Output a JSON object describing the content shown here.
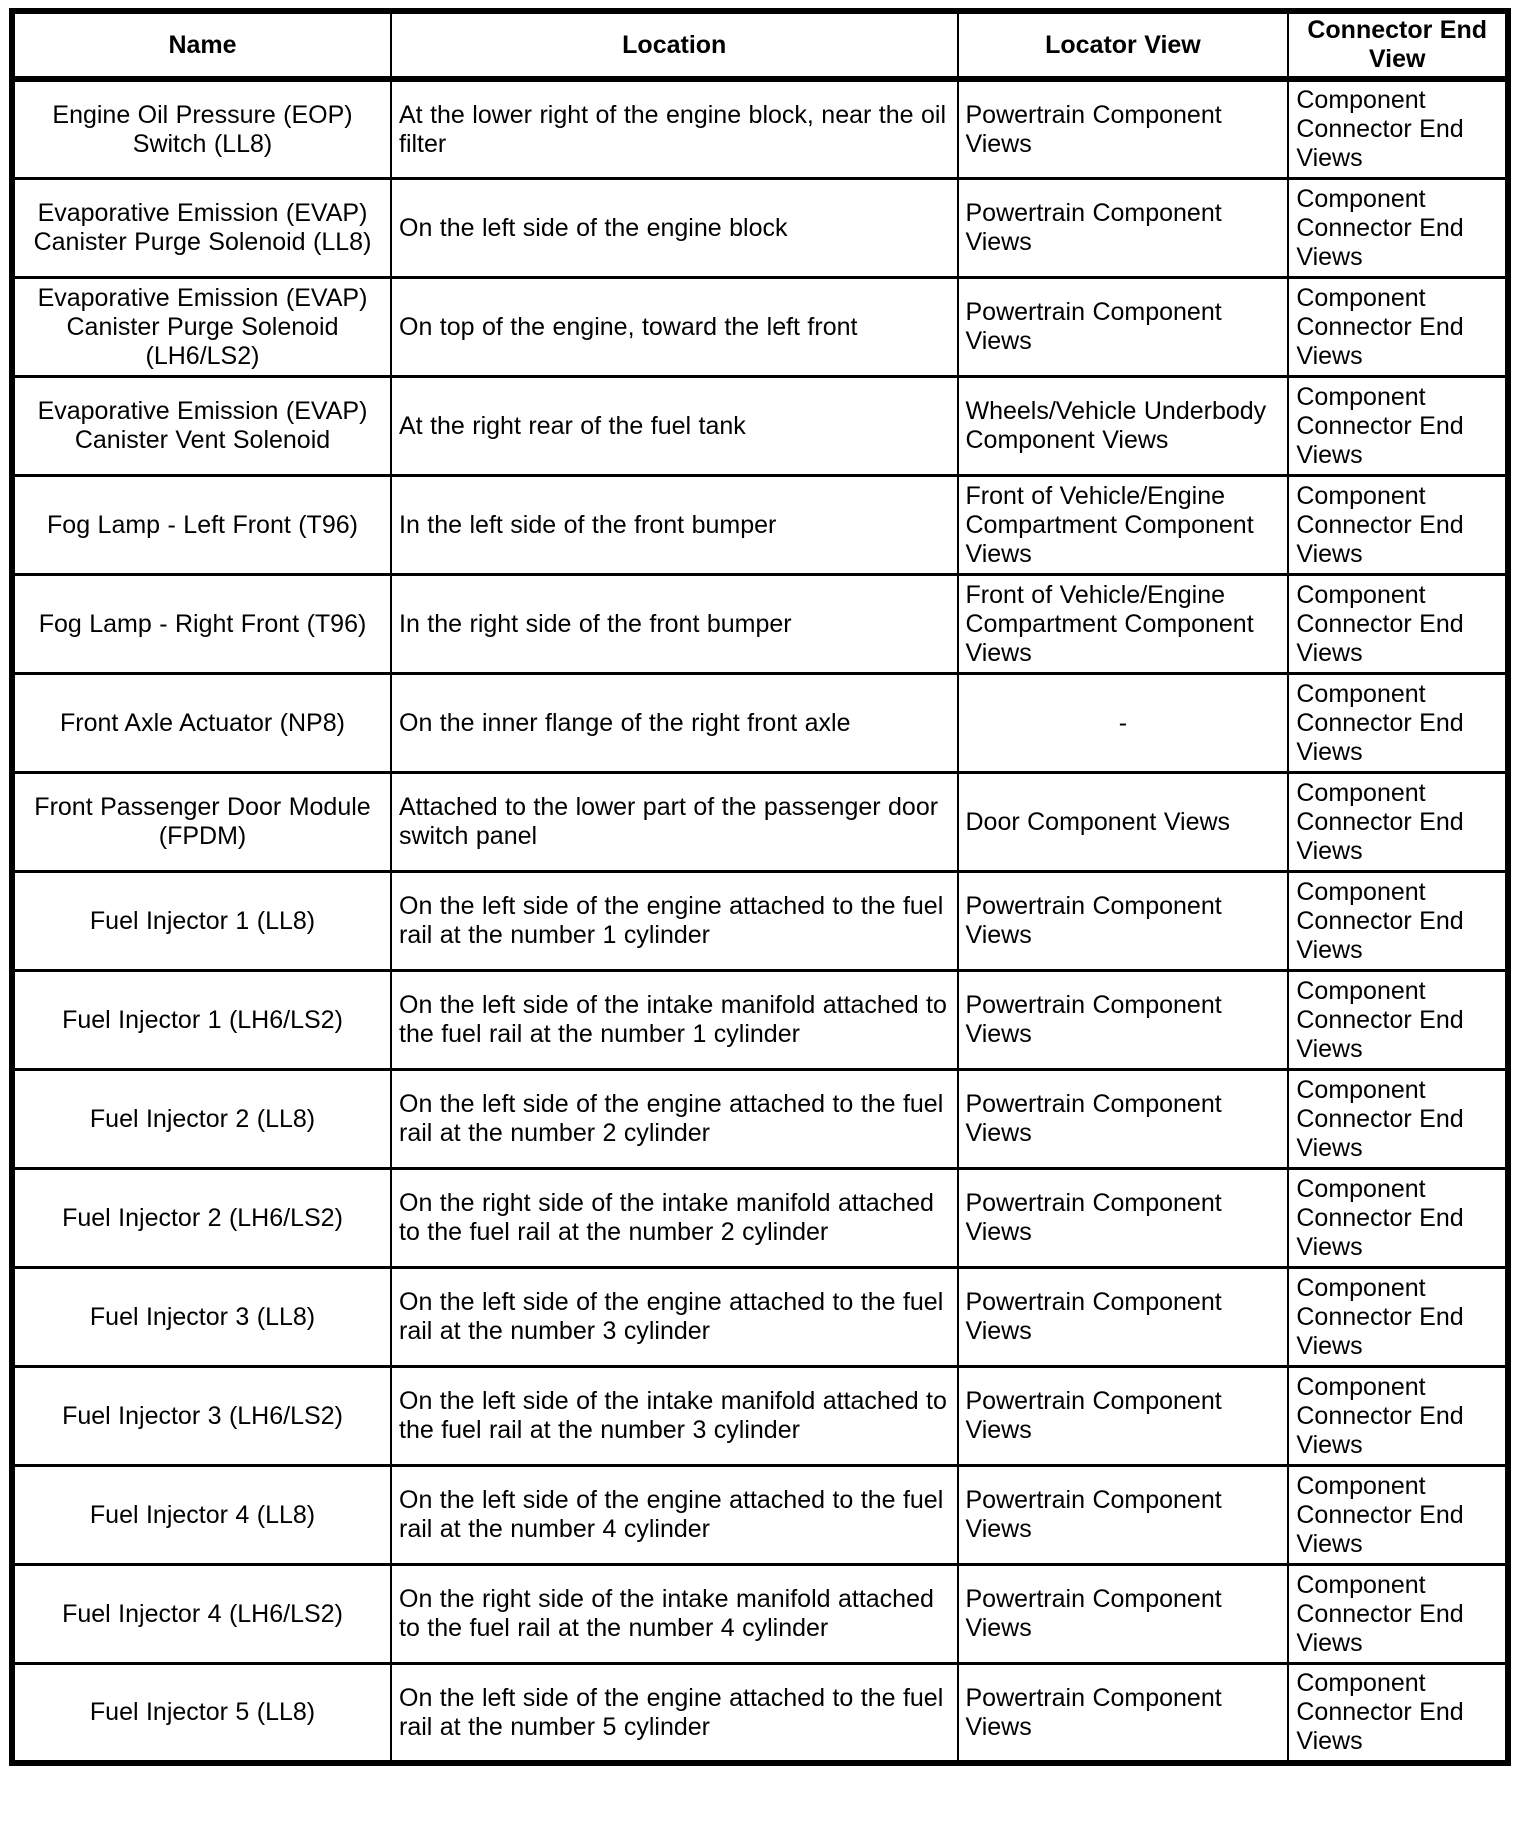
{
  "table": {
    "headers": {
      "name": "Name",
      "location": "Location",
      "locator_view": "Locator View",
      "connector_end_view": "Connector End View"
    },
    "rows": [
      {
        "name": "Engine Oil Pressure (EOP) Switch (LL8)",
        "location": "At the lower right of the engine block, near the oil filter",
        "locator_view": "Powertrain Component Views",
        "connector_end_view": "Component Connector End Views"
      },
      {
        "name": "Evaporative Emission (EVAP) Canister Purge Solenoid (LL8)",
        "location": "On the left side of the engine block",
        "locator_view": "Powertrain Component Views",
        "connector_end_view": "Component Connector End Views"
      },
      {
        "name": "Evaporative Emission (EVAP) Canister Purge Solenoid (LH6/LS2)",
        "location": "On top of the engine, toward the left front",
        "locator_view": "Powertrain Component Views",
        "connector_end_view": "Component Connector End Views"
      },
      {
        "name": "Evaporative Emission (EVAP) Canister Vent Solenoid",
        "location": "At the right rear of the fuel tank",
        "locator_view": "Wheels/Vehicle Underbody Component Views",
        "connector_end_view": "Component Connector End Views"
      },
      {
        "name": "Fog Lamp - Left Front (T96)",
        "location": "In the left side of the front bumper",
        "locator_view": "Front of Vehicle/Engine Compartment Component Views",
        "connector_end_view": "Component Connector End Views"
      },
      {
        "name": "Fog Lamp - Right Front (T96)",
        "location": "In the right side of the front bumper",
        "locator_view": "Front of Vehicle/Engine Compartment Component Views",
        "connector_end_view": "Component Connector End Views"
      },
      {
        "name": "Front Axle Actuator (NP8)",
        "location": "On the inner flange of the right front axle",
        "locator_view": "-",
        "connector_end_view": "Component Connector End Views"
      },
      {
        "name": "Front Passenger Door Module (FPDM)",
        "location": "Attached to the lower part of the passenger door switch panel",
        "locator_view": "Door Component Views",
        "connector_end_view": "Component Connector End Views"
      },
      {
        "name": "Fuel Injector 1 (LL8)",
        "location": "On the left side of the engine attached to the fuel rail at the number 1 cylinder",
        "locator_view": "Powertrain Component Views",
        "connector_end_view": "Component Connector End Views"
      },
      {
        "name": "Fuel Injector 1 (LH6/LS2)",
        "location": "On the left side of the intake manifold attached to the fuel rail at the number 1 cylinder",
        "locator_view": "Powertrain Component Views",
        "connector_end_view": "Component Connector End Views"
      },
      {
        "name": "Fuel Injector 2 (LL8)",
        "location": "On the left side of the engine attached to the fuel rail at the number 2 cylinder",
        "locator_view": "Powertrain Component Views",
        "connector_end_view": "Component Connector End Views"
      },
      {
        "name": "Fuel Injector 2 (LH6/LS2)",
        "location": "On the right side of the intake manifold attached to the fuel rail at the number 2 cylinder",
        "locator_view": "Powertrain Component Views",
        "connector_end_view": "Component Connector End Views"
      },
      {
        "name": "Fuel Injector 3 (LL8)",
        "location": "On the left side of the engine attached to the fuel rail at the number 3 cylinder",
        "locator_view": "Powertrain Component Views",
        "connector_end_view": "Component Connector End Views"
      },
      {
        "name": "Fuel Injector 3 (LH6/LS2)",
        "location": "On the left side of the intake manifold attached to the fuel rail at the number 3 cylinder",
        "locator_view": "Powertrain Component Views",
        "connector_end_view": "Component Connector End Views"
      },
      {
        "name": "Fuel Injector 4 (LL8)",
        "location": "On the left side of the engine attached to the fuel rail at the number 4 cylinder",
        "locator_view": "Powertrain Component Views",
        "connector_end_view": "Component Connector End Views"
      },
      {
        "name": "Fuel Injector 4 (LH6/LS2)",
        "location": "On the right side of the intake manifold attached to the fuel rail at the number 4 cylinder",
        "locator_view": "Powertrain Component Views",
        "connector_end_view": "Component Connector End Views"
      },
      {
        "name": "Fuel Injector 5 (LL8)",
        "location": "On the left side of the engine attached to the fuel rail at the number 5 cylinder",
        "locator_view": "Powertrain Component Views",
        "connector_end_view": "Component Connector End Views"
      }
    ]
  }
}
